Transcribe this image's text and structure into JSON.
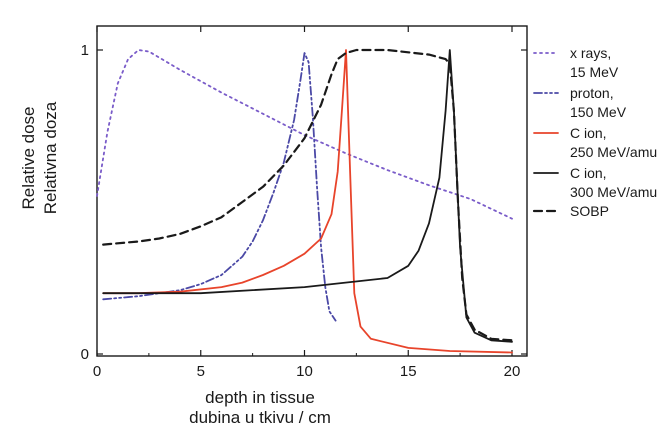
{
  "chart_data": {
    "type": "line",
    "xlabel": [
      "depth in tissue",
      "dubina u tkivu / cm"
    ],
    "ylabel": [
      "Relative dose",
      "Relativna doza"
    ],
    "xlim": [
      0,
      20
    ],
    "ylim": [
      0,
      1
    ],
    "x_ticks": [
      "0",
      "5",
      "10",
      "15",
      "20"
    ],
    "y_ticks": [
      "0",
      "1"
    ],
    "grid": false,
    "legend_position": "right",
    "series": [
      {
        "name": [
          "x rays,",
          "15 MeV"
        ],
        "color": "#7a5cc9",
        "style": "dotted",
        "points": [
          [
            0,
            0.52
          ],
          [
            0.5,
            0.73
          ],
          [
            1,
            0.89
          ],
          [
            1.5,
            0.97
          ],
          [
            2,
            1.0
          ],
          [
            2.5,
            0.995
          ],
          [
            3,
            0.975
          ],
          [
            4,
            0.935
          ],
          [
            6,
            0.86
          ],
          [
            8,
            0.79
          ],
          [
            10,
            0.72
          ],
          [
            12,
            0.66
          ],
          [
            14,
            0.605
          ],
          [
            16,
            0.555
          ],
          [
            18,
            0.51
          ],
          [
            20,
            0.445
          ]
        ]
      },
      {
        "name": [
          "proton,",
          "150 MeV"
        ],
        "color": "#4b49a6",
        "style": "dash-dot-dot",
        "points": [
          [
            0.3,
            0.18
          ],
          [
            2,
            0.19
          ],
          [
            4,
            0.21
          ],
          [
            5,
            0.23
          ],
          [
            6,
            0.26
          ],
          [
            7,
            0.32
          ],
          [
            7.5,
            0.37
          ],
          [
            8,
            0.44
          ],
          [
            8.5,
            0.53
          ],
          [
            9,
            0.63
          ],
          [
            9.5,
            0.77
          ],
          [
            9.8,
            0.9
          ],
          [
            10,
            0.99
          ],
          [
            10.2,
            0.96
          ],
          [
            10.4,
            0.78
          ],
          [
            10.6,
            0.55
          ],
          [
            10.8,
            0.35
          ],
          [
            11,
            0.22
          ],
          [
            11.2,
            0.14
          ],
          [
            11.5,
            0.11
          ]
        ]
      },
      {
        "name": [
          "C ion,",
          "250 MeV/amu"
        ],
        "color": "#e8442b",
        "style": "solid",
        "points": [
          [
            0.3,
            0.2
          ],
          [
            2,
            0.2
          ],
          [
            4,
            0.205
          ],
          [
            6,
            0.22
          ],
          [
            7,
            0.235
          ],
          [
            8,
            0.26
          ],
          [
            9,
            0.29
          ],
          [
            10,
            0.33
          ],
          [
            10.8,
            0.38
          ],
          [
            11.3,
            0.46
          ],
          [
            11.6,
            0.6
          ],
          [
            11.8,
            0.8
          ],
          [
            12,
            1.0
          ],
          [
            12.2,
            0.6
          ],
          [
            12.4,
            0.2
          ],
          [
            12.7,
            0.09
          ],
          [
            13.2,
            0.05
          ],
          [
            15,
            0.02
          ],
          [
            17,
            0.01
          ],
          [
            20,
            0.005
          ]
        ]
      },
      {
        "name": [
          "C ion,",
          "300 MeV/amu"
        ],
        "color": "#1a1a1a",
        "style": "solid",
        "points": [
          [
            0.3,
            0.2
          ],
          [
            5,
            0.2
          ],
          [
            10,
            0.22
          ],
          [
            14,
            0.25
          ],
          [
            15,
            0.29
          ],
          [
            15.5,
            0.34
          ],
          [
            16,
            0.43
          ],
          [
            16.5,
            0.58
          ],
          [
            16.8,
            0.8
          ],
          [
            17,
            1.0
          ],
          [
            17.2,
            0.8
          ],
          [
            17.5,
            0.35
          ],
          [
            17.8,
            0.12
          ],
          [
            18.2,
            0.07
          ],
          [
            19,
            0.045
          ],
          [
            20,
            0.04
          ]
        ]
      },
      {
        "name": [
          "SOBP"
        ],
        "color": "#1a1a1a",
        "style": "dashed",
        "points": [
          [
            0.3,
            0.36
          ],
          [
            2,
            0.37
          ],
          [
            3,
            0.38
          ],
          [
            4,
            0.395
          ],
          [
            5,
            0.42
          ],
          [
            6,
            0.45
          ],
          [
            7,
            0.5
          ],
          [
            8,
            0.55
          ],
          [
            9,
            0.62
          ],
          [
            10,
            0.71
          ],
          [
            10.8,
            0.82
          ],
          [
            11.3,
            0.92
          ],
          [
            11.6,
            0.97
          ],
          [
            12,
            0.99
          ],
          [
            12.5,
            1.0
          ],
          [
            14,
            1.0
          ],
          [
            16,
            0.985
          ],
          [
            16.8,
            0.97
          ],
          [
            17,
            0.955
          ],
          [
            17.2,
            0.8
          ],
          [
            17.4,
            0.5
          ],
          [
            17.6,
            0.25
          ],
          [
            17.8,
            0.13
          ],
          [
            18.2,
            0.08
          ],
          [
            19,
            0.05
          ],
          [
            20,
            0.045
          ]
        ]
      }
    ]
  }
}
